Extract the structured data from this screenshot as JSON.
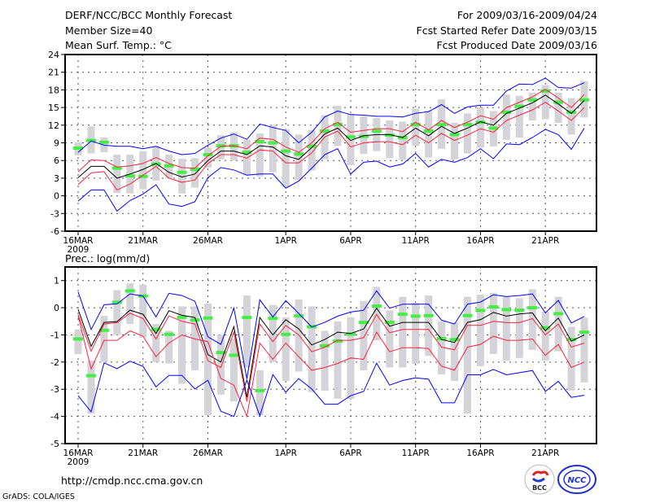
{
  "header": {
    "title": "DERF/NCC/BCC Monthly Forecast",
    "member_size": "Member Size=40",
    "variable": "Mean Surf. Temp.: °C",
    "period": "For 2009/03/16-2009/04/24",
    "start_date": "Fcst Started Refer Date 2009/03/15",
    "produced_date": "Fcst Produced Date 2009/03/16"
  },
  "footer": {
    "url": "http://cmdp.ncc.cma.gov.cn",
    "credit": "GrADS: COLA/IGES",
    "logos": [
      "BCC",
      "NCC"
    ]
  },
  "colors": {
    "max_min": "#0000ff",
    "quartile": "#ff1f3f",
    "mean": "#000000",
    "range_bar": "#d3d3d8",
    "marker": "#44ee44"
  },
  "chart_data": [
    {
      "type": "line",
      "title": "Mean Surf. Temp.: °C",
      "xlabel": "",
      "ylabel": "",
      "x_start": "2009-03-16",
      "days": 40,
      "xticks": [
        {
          "day": 0,
          "label": "16MAR"
        },
        {
          "day": 5,
          "label": "21MAR"
        },
        {
          "day": 10,
          "label": "26MAR"
        },
        {
          "day": 16,
          "label": "1APR"
        },
        {
          "day": 21,
          "label": "6APR"
        },
        {
          "day": 26,
          "label": "11APR"
        },
        {
          "day": 31,
          "label": "16APR"
        },
        {
          "day": 36,
          "label": "21APR"
        }
      ],
      "year_label": "2009",
      "ylim": [
        -6,
        24
      ],
      "yticks": [
        -6,
        -3,
        0,
        3,
        6,
        9,
        12,
        15,
        18,
        21,
        24
      ],
      "grid": true,
      "series": [
        {
          "name": "max",
          "color_key": "max_min",
          "values": [
            7.4,
            9.3,
            8.6,
            8.4,
            8.4,
            8.0,
            8.4,
            7.6,
            7.0,
            7.2,
            8.6,
            9.8,
            10.5,
            9.6,
            12.2,
            11.6,
            11.1,
            9.0,
            10.8,
            13.4,
            14.4,
            13.8,
            13.7,
            13.5,
            13.5,
            13.4,
            14.0,
            14.3,
            15.5,
            14.0,
            15.1,
            15.4,
            15.4,
            17.8,
            19.0,
            18.9,
            20.0,
            18.4,
            18.3,
            19.2
          ]
        },
        {
          "name": "upper",
          "color_key": "quartile",
          "values": [
            4.1,
            6.1,
            6.0,
            4.9,
            5.1,
            5.5,
            6.5,
            5.5,
            4.8,
            4.7,
            6.8,
            8.4,
            8.5,
            8.0,
            9.8,
            9.6,
            8.3,
            7.4,
            9.0,
            11.4,
            12.5,
            10.8,
            11.1,
            11.4,
            11.4,
            10.9,
            12.5,
            11.2,
            12.8,
            11.6,
            12.5,
            13.6,
            13.0,
            15.0,
            15.9,
            16.8,
            18.1,
            16.6,
            15.0,
            17.2
          ]
        },
        {
          "name": "mean",
          "color_key": "mean",
          "values": [
            3.1,
            5.0,
            5.0,
            3.0,
            3.7,
            4.5,
            5.5,
            4.0,
            3.2,
            3.7,
            6.0,
            7.6,
            7.6,
            7.0,
            8.5,
            8.3,
            6.8,
            6.2,
            8.2,
            10.5,
            11.5,
            9.4,
            10.2,
            10.4,
            10.4,
            9.9,
            11.5,
            10.2,
            11.8,
            10.6,
            11.5,
            12.6,
            12.0,
            14.0,
            14.9,
            15.8,
            17.1,
            15.6,
            14.0,
            16.2
          ]
        },
        {
          "name": "lower",
          "color_key": "quartile",
          "values": [
            1.9,
            3.9,
            4.1,
            1.0,
            2.0,
            3.5,
            5.0,
            3.0,
            2.3,
            2.7,
            5.5,
            7.0,
            7.0,
            6.4,
            7.8,
            7.6,
            5.6,
            5.6,
            7.3,
            10.0,
            11.0,
            8.3,
            9.0,
            9.2,
            9.2,
            8.7,
            10.3,
            9.0,
            10.6,
            9.4,
            10.3,
            11.4,
            10.8,
            12.8,
            13.7,
            14.6,
            15.9,
            14.4,
            12.8,
            15.0
          ]
        },
        {
          "name": "min",
          "color_key": "max_min",
          "values": [
            -0.9,
            1.0,
            1.0,
            -2.6,
            -0.8,
            0.3,
            1.9,
            -1.4,
            -1.8,
            -1.0,
            3.1,
            4.8,
            4.4,
            3.5,
            3.7,
            3.7,
            1.3,
            2.5,
            4.7,
            7.0,
            8.0,
            3.7,
            5.7,
            5.9,
            4.9,
            5.4,
            7.2,
            4.9,
            6.2,
            5.7,
            6.5,
            8.0,
            6.3,
            8.8,
            8.7,
            9.9,
            11.3,
            10.4,
            7.9,
            11.5
          ]
        }
      ],
      "range_bars": [
        [
          6.9,
          9.1
        ],
        [
          7.2,
          11.8
        ],
        [
          7.4,
          9.9
        ],
        [
          0.5,
          7.0
        ],
        [
          0.4,
          7.0
        ],
        [
          1.1,
          7.6
        ],
        [
          2.6,
          8.4
        ],
        [
          3.0,
          7.0
        ],
        [
          0.4,
          6.3
        ],
        [
          1.4,
          6.4
        ],
        [
          4.8,
          8.2
        ],
        [
          6.2,
          10.3
        ],
        [
          6.0,
          10.8
        ],
        [
          3.5,
          9.5
        ],
        [
          3.3,
          10.6
        ],
        [
          4.0,
          12.0
        ],
        [
          1.5,
          11.3
        ],
        [
          2.7,
          10.4
        ],
        [
          4.3,
          11.2
        ],
        [
          6.2,
          13.7
        ],
        [
          8.5,
          15.3
        ],
        [
          5.2,
          13.9
        ],
        [
          7.1,
          13.5
        ],
        [
          7.6,
          13.2
        ],
        [
          6.4,
          12.8
        ],
        [
          6.1,
          12.6
        ],
        [
          8.5,
          14.8
        ],
        [
          6.5,
          14.5
        ],
        [
          8.0,
          16.4
        ],
        [
          6.2,
          12.4
        ],
        [
          7.2,
          14.0
        ],
        [
          8.2,
          15.0
        ],
        [
          8.4,
          14.4
        ],
        [
          9.5,
          17.2
        ],
        [
          9.9,
          17.0
        ],
        [
          12.8,
          17.5
        ],
        [
          13.0,
          18.8
        ],
        [
          12.4,
          17.5
        ],
        [
          10.4,
          16.6
        ],
        [
          13.3,
          19.5
        ]
      ],
      "markers": [
        8.1,
        9.4,
        9.1,
        4.7,
        3.4,
        3.3,
        5.4,
        5.1,
        4.0,
        4.5,
        7.0,
        8.5,
        8.5,
        7.4,
        9.2,
        9.0,
        7.6,
        7.1,
        8.4,
        11.0,
        12.1,
        10.0,
        10.1,
        11.0,
        10.3,
        9.9,
        12.1,
        11.0,
        12.1,
        10.4,
        12.1,
        12.5,
        11.5,
        14.2,
        15.2,
        16.3,
        17.8,
        15.9,
        14.2,
        16.3
      ]
    },
    {
      "type": "line",
      "title": "Prec.: log(mm/d)",
      "xlabel": "",
      "ylabel": "",
      "x_start": "2009-03-16",
      "days": 40,
      "xticks": [
        {
          "day": 0,
          "label": "16MAR"
        },
        {
          "day": 5,
          "label": "21MAR"
        },
        {
          "day": 10,
          "label": "26MAR"
        },
        {
          "day": 16,
          "label": "1APR"
        },
        {
          "day": 21,
          "label": "6APR"
        },
        {
          "day": 26,
          "label": "11APR"
        },
        {
          "day": 31,
          "label": "16APR"
        },
        {
          "day": 36,
          "label": "21APR"
        }
      ],
      "year_label": "2009",
      "ylim": [
        -5,
        1.5
      ],
      "yticks": [
        -5,
        -4,
        -3,
        -2,
        -1,
        0,
        1
      ],
      "grid": true,
      "series": [
        {
          "name": "max",
          "color_key": "max_min",
          "values": [
            0.58,
            -0.8,
            0.11,
            0.14,
            0.51,
            0.43,
            -0.34,
            0.53,
            0.45,
            0.24,
            -1.07,
            -1.35,
            -0.01,
            -2.62,
            0.29,
            -0.34,
            0.26,
            -0.21,
            -0.71,
            -0.54,
            -0.31,
            -0.16,
            -0.09,
            0.62,
            -0.02,
            0.13,
            0.13,
            0.13,
            -0.46,
            -0.6,
            0.13,
            0.21,
            0.48,
            0.41,
            0.45,
            0.51,
            -0.19,
            0.27,
            -0.56,
            -0.32
          ]
        },
        {
          "name": "mean",
          "color_key": "mean",
          "values": [
            -0.06,
            -1.42,
            -0.54,
            -0.51,
            -0.09,
            -0.24,
            -0.95,
            -0.11,
            -0.28,
            -0.36,
            -1.73,
            -2.0,
            -0.7,
            -3.3,
            -0.36,
            -1.0,
            -0.44,
            -0.78,
            -1.37,
            -1.17,
            -0.9,
            -0.95,
            -0.78,
            -0.02,
            -0.68,
            -0.54,
            -0.54,
            -0.54,
            -1.17,
            -1.28,
            -0.54,
            -0.44,
            -0.17,
            -0.31,
            -0.23,
            -0.19,
            -0.85,
            -0.38,
            -1.23,
            -1.0
          ]
        },
        {
          "name": "upper",
          "color_key": "quartile",
          "values": [
            -0.25,
            -1.6,
            -0.6,
            -0.55,
            -0.2,
            -0.4,
            -1.15,
            -0.3,
            -0.5,
            -0.6,
            -1.95,
            -2.2,
            -0.9,
            -3.45,
            -0.6,
            -1.25,
            -0.65,
            -1.0,
            -1.62,
            -1.45,
            -1.2,
            -1.2,
            -1.1,
            -0.25,
            -0.92,
            -0.8,
            -0.8,
            -0.8,
            -1.45,
            -1.55,
            -0.65,
            -0.65,
            -0.5,
            -0.55,
            -0.55,
            -0.4,
            -1.0,
            -0.6,
            -1.45,
            -1.3
          ]
        },
        {
          "name": "lower",
          "color_key": "quartile",
          "values": [
            -0.3,
            -2.25,
            -1.2,
            -1.2,
            -0.85,
            -1.05,
            -1.8,
            -1.3,
            -1.0,
            -1.15,
            -1.25,
            -2.6,
            -2.85,
            -4.0,
            -1.3,
            -1.9,
            -1.3,
            -1.8,
            -2.3,
            -2.2,
            -2.05,
            -1.85,
            -1.9,
            -0.9,
            -1.62,
            -1.47,
            -1.47,
            -1.5,
            -2.15,
            -2.3,
            -1.45,
            -1.35,
            -1.05,
            -1.2,
            -1.2,
            -1.15,
            -1.75,
            -1.35,
            -2.2,
            -2.0
          ]
        },
        {
          "name": "min",
          "color_key": "max_min",
          "values": [
            -3.24,
            -3.83,
            -2.03,
            -2.24,
            -1.97,
            -2.16,
            -2.91,
            -2.49,
            -2.49,
            -2.99,
            -2.67,
            -3.81,
            -4.0,
            -2.66,
            -3.98,
            -2.46,
            -3.11,
            -2.61,
            -2.99,
            -3.55,
            -3.55,
            -3.24,
            -3.08,
            -2.04,
            -2.85,
            -2.68,
            -2.58,
            -2.63,
            -3.5,
            -3.5,
            -2.47,
            -2.47,
            -2.27,
            -2.47,
            -2.39,
            -2.31,
            -3.08,
            -2.71,
            -3.3,
            -3.22
          ]
        }
      ],
      "range_bars": [
        [
          -1.7,
          -0.8
        ],
        [
          -3.9,
          -1.95
        ],
        [
          -2.0,
          -0.3
        ],
        [
          -1.0,
          0.65
        ],
        [
          -0.6,
          0.9
        ],
        [
          -1.1,
          0.85
        ],
        [
          -2.0,
          -0.6
        ],
        [
          -2.05,
          -0.85
        ],
        [
          -2.8,
          0.05
        ],
        [
          -2.3,
          0.05
        ],
        [
          -3.95,
          0.15
        ],
        [
          -3.2,
          -1.0
        ],
        [
          -3.45,
          -1.15
        ],
        [
          -2.2,
          0.45
        ],
        [
          -3.95,
          -2.3
        ],
        [
          -2.0,
          0.1
        ],
        [
          -2.7,
          -0.35
        ],
        [
          -2.35,
          0.3
        ],
        [
          -3.1,
          0.05
        ],
        [
          -3.05,
          -0.85
        ],
        [
          -3.35,
          -0.5
        ],
        [
          -3.35,
          -0.35
        ],
        [
          -2.3,
          0.25
        ],
        [
          -1.2,
          0.77
        ],
        [
          -2.2,
          -0.1
        ],
        [
          -2.2,
          0.4
        ],
        [
          -2.06,
          0.18
        ],
        [
          -1.77,
          0.45
        ],
        [
          -2.45,
          -0.5
        ],
        [
          -2.7,
          -0.55
        ],
        [
          -3.9,
          0.4
        ],
        [
          -2.15,
          0.48
        ],
        [
          -1.7,
          0.55
        ],
        [
          -1.95,
          0.4
        ],
        [
          -1.85,
          0.35
        ],
        [
          -1.55,
          0.68
        ],
        [
          -1.95,
          -0.15
        ],
        [
          -1.6,
          0.4
        ],
        [
          -3.05,
          -0.7
        ],
        [
          -2.75,
          -0.37
        ]
      ],
      "markers": [
        -1.15,
        -2.5,
        -0.83,
        0.2,
        0.62,
        0.43,
        -0.8,
        -0.98,
        -0.35,
        -0.45,
        -0.38,
        -1.65,
        -1.75,
        -0.36,
        -3.05,
        -0.39,
        -0.98,
        -0.3,
        -0.7,
        -1.4,
        -1.23,
        -0.97,
        -0.54,
        0.06,
        -0.54,
        -0.24,
        -0.31,
        -0.29,
        -1.14,
        -1.17,
        -0.29,
        -0.1,
        0.03,
        -0.07,
        -0.09,
        0.0,
        -0.74,
        -0.22,
        -1.17,
        -0.9
      ]
    }
  ]
}
